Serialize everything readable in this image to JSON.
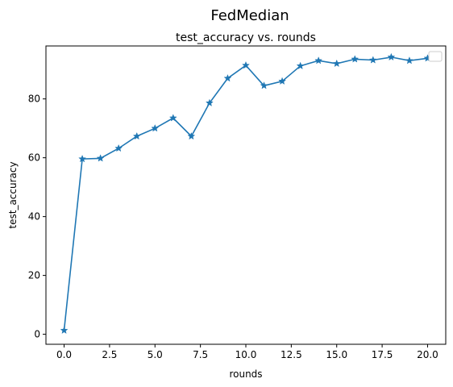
{
  "chart_data": {
    "type": "line",
    "suptitle": "FedMedian",
    "title": "test_accuracy vs. rounds",
    "xlabel": "rounds",
    "ylabel": "test_accuracy",
    "xlim": [
      -1.0,
      21.0
    ],
    "ylim": [
      -3.4,
      98.0
    ],
    "xticks": [
      0.0,
      2.5,
      5.0,
      7.5,
      10.0,
      12.5,
      15.0,
      17.5,
      20.0
    ],
    "xtick_labels": [
      "0.0",
      "2.5",
      "5.0",
      "7.5",
      "10.0",
      "12.5",
      "15.0",
      "17.5",
      "20.0"
    ],
    "yticks": [
      0,
      20,
      40,
      60,
      80
    ],
    "ytick_labels": [
      "0",
      "20",
      "40",
      "60",
      "80"
    ],
    "grid": false,
    "legend": "top-right (empty)",
    "marker": "star",
    "color": "#1f77b4",
    "series": [
      {
        "x": [
          0,
          1,
          2,
          3,
          4,
          5,
          6,
          7,
          8,
          9,
          10,
          11,
          12,
          13,
          14,
          15,
          16,
          17,
          18,
          19,
          20
        ],
        "y": [
          1.3,
          59.6,
          59.8,
          63.2,
          67.3,
          70.0,
          73.5,
          67.3,
          78.6,
          87.0,
          91.4,
          84.5,
          86.0,
          91.2,
          93.0,
          92.0,
          93.5,
          93.2,
          94.2,
          93.0,
          93.8
        ]
      }
    ]
  }
}
